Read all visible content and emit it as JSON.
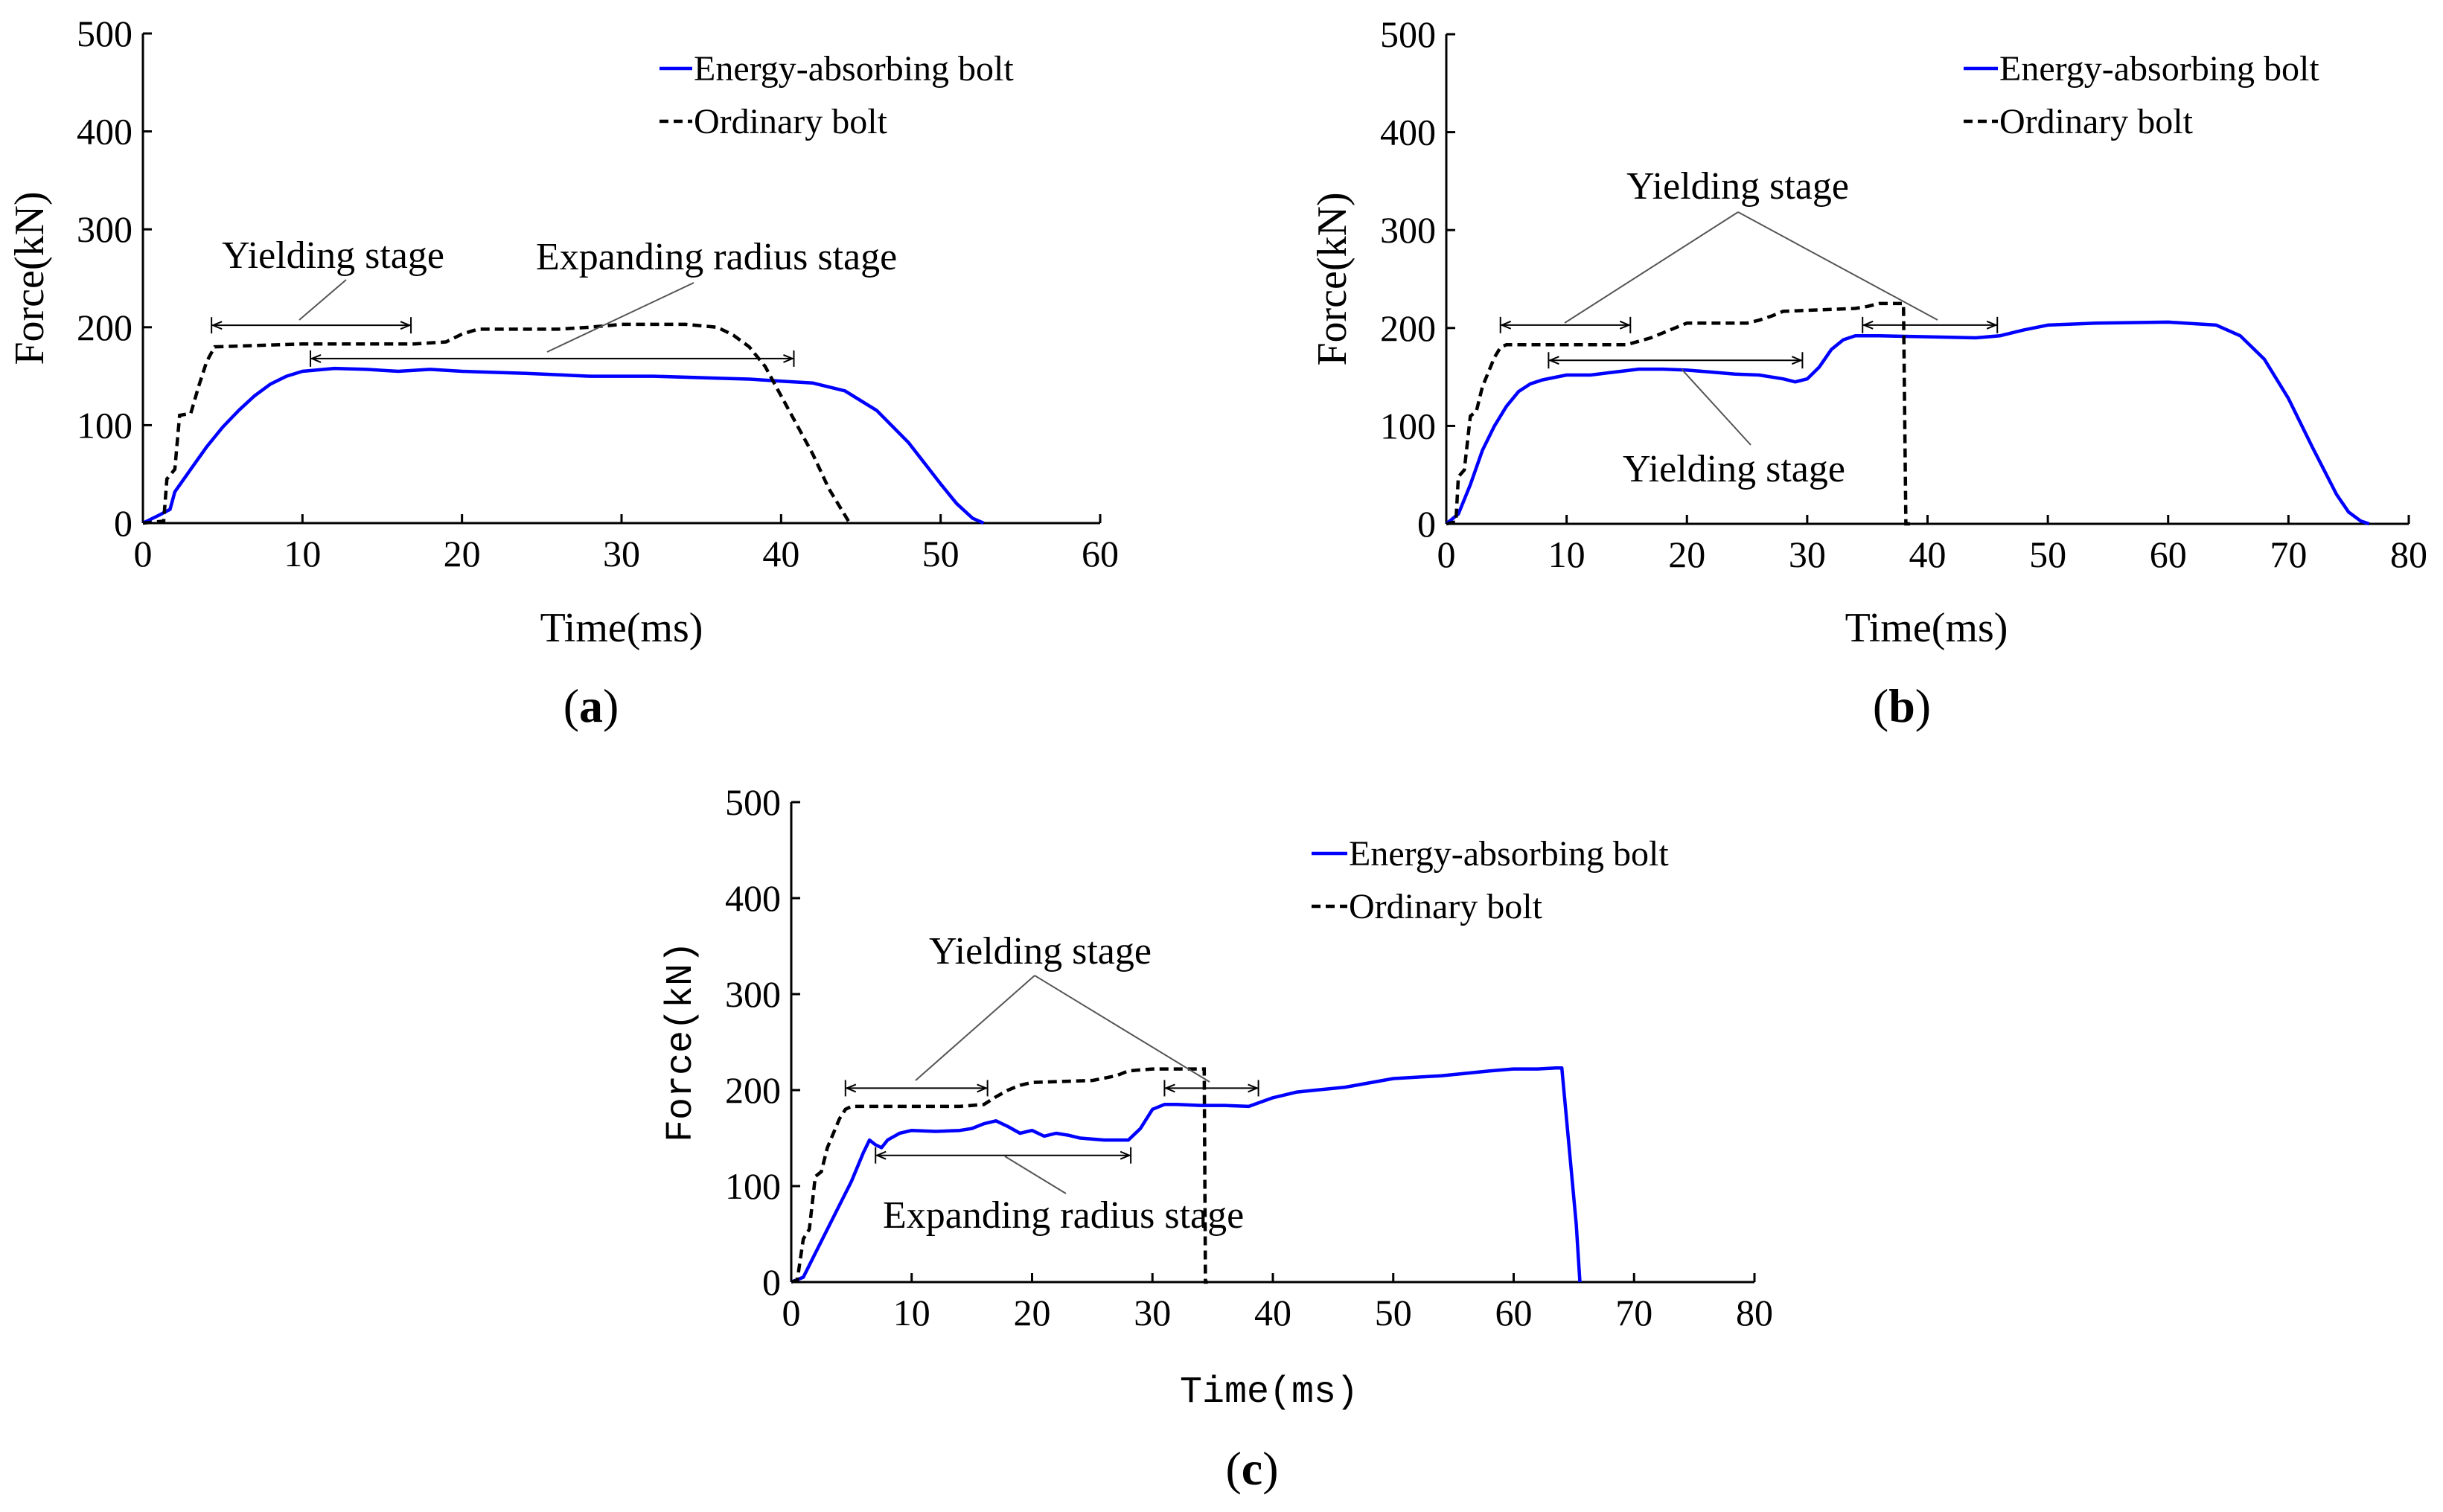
{
  "chart_data": [
    {
      "type": "line",
      "panel_label": "a",
      "xlabel": "Time(ms)",
      "ylabel": "Force(kN)",
      "xlim": [
        0,
        60
      ],
      "ylim": [
        0,
        500
      ],
      "xticks": [
        0,
        10,
        20,
        30,
        40,
        50,
        60
      ],
      "yticks": [
        0,
        100,
        200,
        300,
        400,
        500
      ],
      "legend_position": "top-right",
      "series": [
        {
          "name": "Energy-absorbing bolt",
          "style": "solid",
          "color": "#0000ff",
          "x": [
            0,
            1,
            1.7,
            2,
            3,
            4,
            5,
            6,
            7,
            8,
            9,
            10,
            12,
            14,
            16,
            18,
            20,
            24,
            28,
            32,
            36,
            38,
            40,
            42,
            44,
            46,
            48,
            50,
            51,
            52,
            52.7
          ],
          "y": [
            0,
            8,
            14,
            32,
            55,
            78,
            98,
            115,
            130,
            142,
            150,
            155,
            158,
            157,
            155,
            157,
            155,
            153,
            150,
            150,
            148,
            147,
            145,
            143,
            135,
            115,
            82,
            40,
            20,
            5,
            0
          ]
        },
        {
          "name": "Ordinary bolt",
          "style": "dashed",
          "color": "#000000",
          "x": [
            0,
            1.3,
            1.5,
            2,
            2.3,
            3,
            3.5,
            4,
            4.5,
            10,
            17,
            19,
            20,
            21,
            26,
            28,
            30,
            34,
            36,
            37,
            38,
            39,
            40,
            41,
            42,
            43,
            44.3
          ],
          "y": [
            0,
            2,
            45,
            55,
            110,
            112,
            140,
            165,
            180,
            183,
            183,
            185,
            193,
            198,
            198,
            200,
            203,
            203,
            200,
            192,
            180,
            160,
            130,
            100,
            70,
            35,
            0
          ]
        }
      ],
      "annotations": [
        {
          "text": "Yielding stage",
          "range": [
            4.3,
            16.8
          ],
          "level": 202
        },
        {
          "text": "Expanding radius stage",
          "range": [
            10.5,
            40.8
          ],
          "level": 168
        }
      ]
    },
    {
      "type": "line",
      "panel_label": "b",
      "xlabel": "Time(ms)",
      "ylabel": "Force(kN)",
      "xlim": [
        0,
        80
      ],
      "ylim": [
        0,
        500
      ],
      "xticks": [
        0,
        10,
        20,
        30,
        40,
        50,
        60,
        70,
        80
      ],
      "yticks": [
        0,
        100,
        200,
        300,
        400,
        500
      ],
      "legend_position": "top-right",
      "series": [
        {
          "name": "Energy-absorbing bolt",
          "style": "solid",
          "color": "#0000ff",
          "x": [
            0,
            1,
            2,
            3,
            4,
            5,
            6,
            7,
            8,
            10,
            12,
            14,
            16,
            18,
            20,
            22,
            24,
            26,
            28,
            29,
            30,
            31,
            32,
            33,
            34,
            36,
            40,
            44,
            46,
            48,
            50,
            54,
            60,
            64,
            66,
            68,
            70,
            72,
            74,
            75,
            76,
            76.7
          ],
          "y": [
            0,
            10,
            40,
            75,
            100,
            120,
            135,
            143,
            147,
            152,
            152,
            155,
            158,
            158,
            157,
            155,
            153,
            152,
            148,
            145,
            148,
            160,
            178,
            188,
            192,
            192,
            191,
            190,
            192,
            198,
            203,
            205,
            206,
            203,
            192,
            168,
            128,
            78,
            30,
            12,
            3,
            0
          ]
        },
        {
          "name": "Ordinary bolt",
          "style": "dashed",
          "color": "#000000",
          "x": [
            0,
            0.8,
            1,
            1.5,
            2,
            2.5,
            3,
            4,
            4.5,
            5,
            15,
            17,
            18,
            19,
            20,
            25,
            26,
            27,
            28,
            30,
            34,
            35,
            36,
            37,
            38,
            38.2,
            38.6
          ],
          "y": [
            0,
            2,
            48,
            55,
            110,
            115,
            140,
            170,
            180,
            183,
            183,
            190,
            195,
            200,
            205,
            205,
            208,
            212,
            217,
            218,
            220,
            222,
            225,
            225,
            225,
            0,
            0
          ]
        }
      ],
      "annotations": [
        {
          "text": "Yielding stage",
          "range": [
            4.5,
            15.3
          ],
          "level": 203
        },
        {
          "text": "Yielding stage",
          "range": [
            34.6,
            45.8
          ],
          "level": 203
        },
        {
          "text": "Yielding stage",
          "range": [
            8.5,
            29.6
          ],
          "level": 167
        }
      ]
    },
    {
      "type": "line",
      "panel_label": "c",
      "xlabel": "Time(ms)",
      "ylabel": "Force(kN)",
      "xlim": [
        0,
        80
      ],
      "ylim": [
        0,
        500
      ],
      "xticks": [
        0,
        10,
        20,
        30,
        40,
        50,
        60,
        70,
        80
      ],
      "yticks": [
        0,
        100,
        200,
        300,
        400,
        500
      ],
      "legend_position": "top-right",
      "series": [
        {
          "name": "Energy-absorbing bolt",
          "style": "solid",
          "color": "#0000ff",
          "x": [
            0,
            1,
            2,
            3,
            4,
            5,
            6,
            6.5,
            7,
            7.5,
            8,
            9,
            10,
            12,
            14,
            15,
            16,
            17,
            18,
            19,
            20,
            21,
            22,
            23,
            24,
            26,
            28,
            29,
            30,
            31,
            32,
            34,
            36,
            38,
            40,
            42,
            46,
            50,
            54,
            58,
            60,
            62,
            63.5,
            64,
            65.2,
            65.5
          ],
          "y": [
            0,
            5,
            30,
            55,
            80,
            105,
            135,
            148,
            143,
            140,
            148,
            155,
            158,
            157,
            158,
            160,
            165,
            168,
            162,
            155,
            158,
            152,
            155,
            153,
            150,
            148,
            148,
            160,
            180,
            185,
            185,
            184,
            184,
            183,
            192,
            198,
            203,
            212,
            215,
            220,
            222,
            222,
            223,
            223,
            60,
            0
          ]
        },
        {
          "name": "Ordinary bolt",
          "style": "dashed",
          "color": "#000000",
          "x": [
            0,
            0.5,
            1,
            1.5,
            2,
            2.5,
            3,
            4,
            4.5,
            5,
            14,
            16,
            17,
            18,
            19,
            20,
            25,
            27,
            28,
            30,
            33,
            34.3,
            34.4,
            34.6
          ],
          "y": [
            0,
            2,
            45,
            55,
            110,
            115,
            140,
            170,
            180,
            183,
            183,
            185,
            193,
            200,
            205,
            208,
            210,
            215,
            220,
            222,
            222,
            222,
            0,
            0
          ]
        }
      ],
      "annotations": [
        {
          "text": "Yielding stage",
          "range": [
            4.5,
            16.3
          ],
          "level": 202
        },
        {
          "text": "Yielding stage",
          "range": [
            31.0,
            38.8
          ],
          "level": 202
        },
        {
          "text": "Expanding radius stage",
          "range": [
            7.0,
            28.2
          ],
          "level": 132
        }
      ]
    }
  ]
}
